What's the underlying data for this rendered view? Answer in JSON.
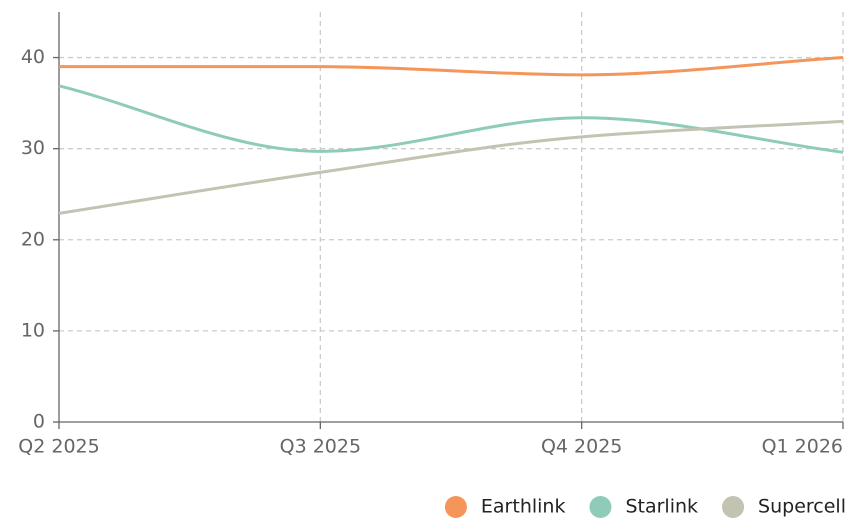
{
  "chart_data": {
    "type": "line",
    "categories": [
      "Q2 2025",
      "Q3 2025",
      "Q4 2025",
      "Q1 2026"
    ],
    "series": [
      {
        "name": "Earthlink",
        "color": "#f5955a",
        "values": [
          39,
          39,
          38.1,
          40
        ]
      },
      {
        "name": "Starlink",
        "color": "#8ecbb8",
        "values": [
          36.9,
          29.7,
          33.4,
          29.6
        ]
      },
      {
        "name": "Supercell",
        "color": "#c2c3b0",
        "values": [
          22.9,
          27.4,
          31.3,
          33
        ]
      }
    ],
    "ylim": [
      0,
      45
    ],
    "yticks": [
      0,
      10,
      20,
      30,
      40
    ],
    "grid": true,
    "legend": "bottom-right"
  }
}
